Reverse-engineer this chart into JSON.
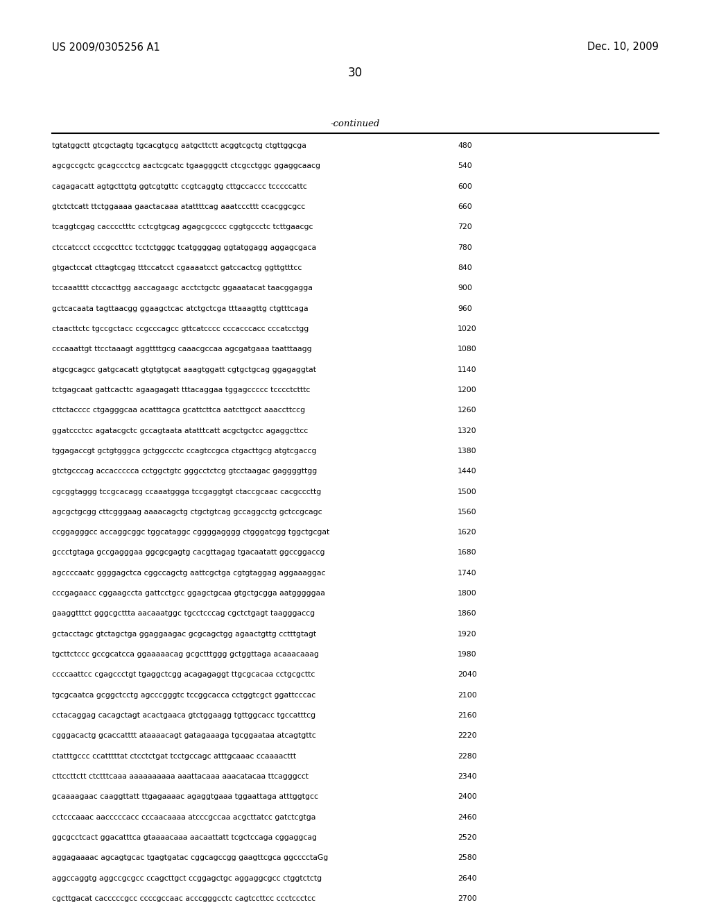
{
  "header_left": "US 2009/0305256 A1",
  "header_right": "Dec. 10, 2009",
  "page_number": "30",
  "continued_label": "-continued",
  "background_color": "#ffffff",
  "text_color": "#000000",
  "seq_font_size": 7.8,
  "header_font_size": 10.5,
  "page_num_font_size": 12,
  "continued_font_size": 9.5,
  "sequences": [
    [
      "tgtatggctt gtcgctagtg tgcacgtgcg aatgcttctt acggtcgctg ctgttggcga",
      "480"
    ],
    [
      "agcgccgctc gcagccctcg aactcgcatc tgaagggctt ctcgcctggc ggaggcaacg",
      "540"
    ],
    [
      "cagagacatt agtgcttgtg ggtcgtgttc ccgtcaggtg cttgccaccc tcccccattc",
      "600"
    ],
    [
      "gtctctcatt ttctggaaaa gaactacaaa atattttcag aaatcccttt ccacggcgcc",
      "660"
    ],
    [
      "tcaggtcgag cacccctttc cctcgtgcag agagcgcccc cggtgccctc tcttgaacgc",
      "720"
    ],
    [
      "ctccatccct cccgccttcc tcctctgggc tcatggggag ggtatggagg aggagcgaca",
      "780"
    ],
    [
      "gtgactccat cttagtcgag tttccatcct cgaaaatcct gatccactcg ggttgtttcc",
      "840"
    ],
    [
      "tccaaatttt ctccacttgg aaccagaagc acctctgctc ggaaatacat taacggagga",
      "900"
    ],
    [
      "gctcacaata tagttaacgg ggaagctcac atctgctcga tttaaagttg ctgtttcaga",
      "960"
    ],
    [
      "ctaacttctc tgccgctacc ccgcccagcc gttcatcccc cccacccacc cccatcctgg",
      "1020"
    ],
    [
      "cccaaattgt ttcctaaagt aggttttgcg caaacgccaa agcgatgaaa taatttaagg",
      "1080"
    ],
    [
      "atgcgcagcc gatgcacatt gtgtgtgcat aaagtggatt cgtgctgcag ggagaggtat",
      "1140"
    ],
    [
      "tctgagcaat gattcacttc agaagagatt tttacaggaa tggagccccc tcccctctttc",
      "1200"
    ],
    [
      "cttctacccc ctgagggcaa acatttagca gcattcttca aatcttgcct aaaccttccg",
      "1260"
    ],
    [
      "ggatccctcc agatacgctc gccagtaata atatttcatt acgctgctcc agaggcttcc",
      "1320"
    ],
    [
      "tggagaccgt gctgtgggca gctggccctc ccagtccgca ctgacttgcg atgtcgaccg",
      "1380"
    ],
    [
      "gtctgcccag accaccccca cctggctgtc gggcctctcg gtcctaagac gaggggttgg",
      "1440"
    ],
    [
      "cgcggtaggg tccgcacagg ccaaatggga tccgaggtgt ctaccgcaac cacgcccttg",
      "1500"
    ],
    [
      "agcgctgcgg cttcgggaag aaaacagctg ctgctgtcag gccaggcctg gctccgcagc",
      "1560"
    ],
    [
      "ccggagggcc accaggcggc tggcataggc cggggagggg ctgggatcgg tggctgcgat",
      "1620"
    ],
    [
      "gccctgtaga gccgagggaa ggcgcgagtg cacgttagag tgacaatatt ggccggaccg",
      "1680"
    ],
    [
      "agccccaatc ggggagctca cggccagctg aattcgctga cgtgtaggag aggaaaggac",
      "1740"
    ],
    [
      "cccgagaacc cggaagccta gattcctgcc ggagctgcaa gtgctgcgga aatgggggaa",
      "1800"
    ],
    [
      "gaaggtttct gggcgcttta aacaaatggc tgcctcccag cgctctgagt taagggaccg",
      "1860"
    ],
    [
      "gctacctagc gtctagctga ggaggaagac gcgcagctgg agaactgttg cctttgtagt",
      "1920"
    ],
    [
      "tgcttctccc gccgcatcca ggaaaaacag gcgctttggg gctggttaga acaaacaaag",
      "1980"
    ],
    [
      "ccccaattcc cgagccctgt tgaggctcgg acagagaggt ttgcgcacaa cctgcgcttc",
      "2040"
    ],
    [
      "tgcgcaatca gcggctcctg agcccgggtc tccggcacca cctggtcgct ggattcccac",
      "2100"
    ],
    [
      "cctacaggag cacagctagt acactgaaca gtctggaagg tgttggcacc tgccatttcg",
      "2160"
    ],
    [
      "cgggacactg gcaccatttt ataaaacagt gatagaaaga tgcggaataa atcagtgttc",
      "2220"
    ],
    [
      "ctatttgccc ccatttttat ctcctctgat tcctgccagc atttgcaaac ccaaaacttt",
      "2280"
    ],
    [
      "cttccttctt ctctttcaaa aaaaaaaaaa aaattacaaa aaacatacaa ttcagggcct",
      "2340"
    ],
    [
      "gcaaaagaac caaggttatt ttgagaaaac agaggtgaaa tggaattaga atttggtgcc",
      "2400"
    ],
    [
      "cctcccaaac aacccccacc cccaacaaaa atcccgccaa acgcttatcc gatctcgtga",
      "2460"
    ],
    [
      "ggcgcctcact ggacatttca gtaaaacaaa aacaattatt tcgctccaga cggaggcag",
      "2520"
    ],
    [
      "aggagaaaac agcagtgcac tgagtgatac cggcagccgg gaagttcgca ggcccctaGg",
      "2580"
    ],
    [
      "aggccaggtg aggccgcgcc ccagcttgct ccggagctgc aggaggcgcc ctggtctctg",
      "2640"
    ],
    [
      "cgcttgacat cacccccgcc ccccgccaac acccgggcctc cagtccttcc ccctccctcc",
      "2700"
    ]
  ]
}
